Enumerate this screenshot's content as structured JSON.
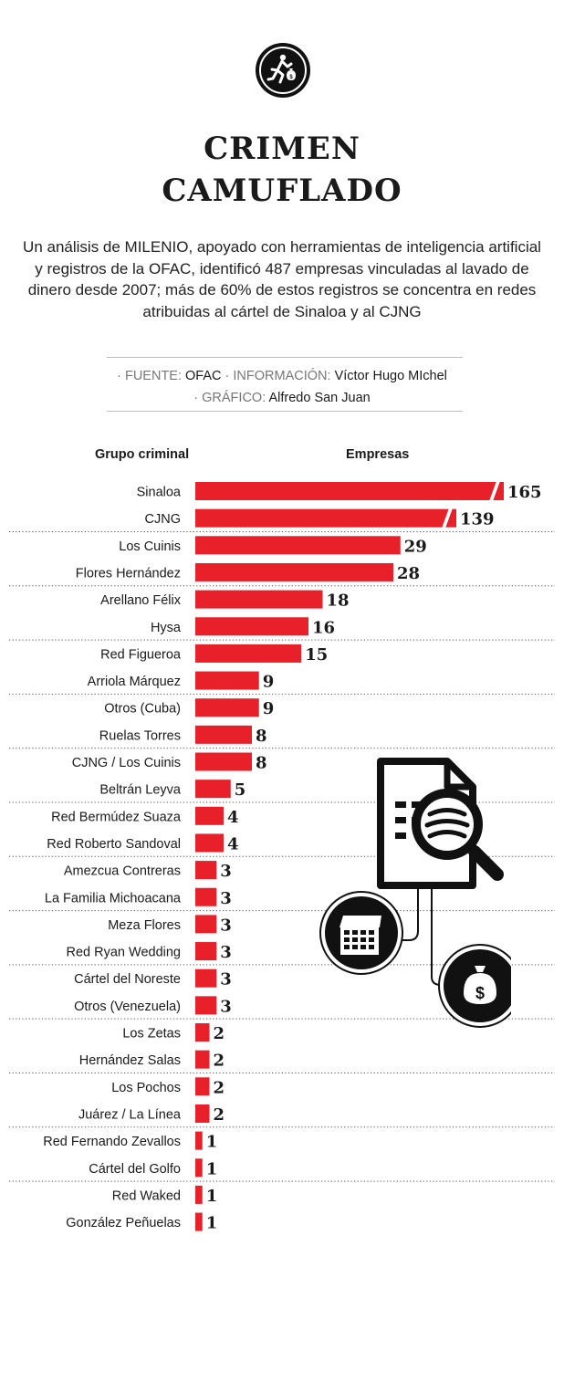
{
  "header": {
    "title_line1": "CRIMEN",
    "title_line2": "CAMUFLADO",
    "subtitle": "Un análisis de MILENIO, apoyado con herramientas de inteligencia artificial y registros de la OFAC, identificó 487 empresas vinculadas al lavado de dinero desde 2007; más de 60% de estos registros se concentra en redes atribuidas al cártel de Sinaloa y al CJNG"
  },
  "credits": {
    "source_label": "· FUENTE:",
    "source_value": "OFAC",
    "info_label": "· INFORMACIÓN:",
    "info_value": "Víctor Hugo MIchel",
    "graphic_label": "· GRÁFICO:",
    "graphic_value": "Alfredo San Juan"
  },
  "icons": {
    "logo": "running-thief-money-bag-icon",
    "document": "document-magnifier-icon",
    "building": "building-icon",
    "money": "money-bag-icon"
  },
  "colors": {
    "bar": "#e8202a",
    "text": "#1a1a1a"
  },
  "chart_data": {
    "type": "bar",
    "orientation": "horizontal",
    "category_header": "Grupo criminal",
    "value_header": "Empresas",
    "categories": [
      "Sinaloa",
      "CJNG",
      "Los Cuinis",
      "Flores Hernández",
      "Arellano Félix",
      "Hysa",
      "Red Figueroa",
      "Arriola Márquez",
      "Otros (Cuba)",
      "Ruelas Torres",
      "CJNG / Los Cuinis",
      "Beltrán Leyva",
      "Red Bermúdez Suaza",
      "Red Roberto Sandoval",
      "Amezcua Contreras",
      "La Familia Michoacana",
      "Meza Flores",
      "Red Ryan Wedding",
      "Cártel del Noreste",
      "Otros (Venezuela)",
      "Los Zetas",
      "Hernández Salas",
      "Los Pochos",
      "Juárez / La Línea",
      "Red Fernando Zevallos",
      "Cártel del Golfo",
      "Red Waked",
      "González Peñuelas"
    ],
    "values": [
      165,
      139,
      29,
      28,
      18,
      16,
      15,
      9,
      9,
      8,
      8,
      5,
      4,
      4,
      3,
      3,
      3,
      3,
      3,
      3,
      2,
      2,
      2,
      2,
      1,
      1,
      1,
      1
    ],
    "broken_axis_categories": [
      "Sinaloa",
      "CJNG"
    ]
  }
}
